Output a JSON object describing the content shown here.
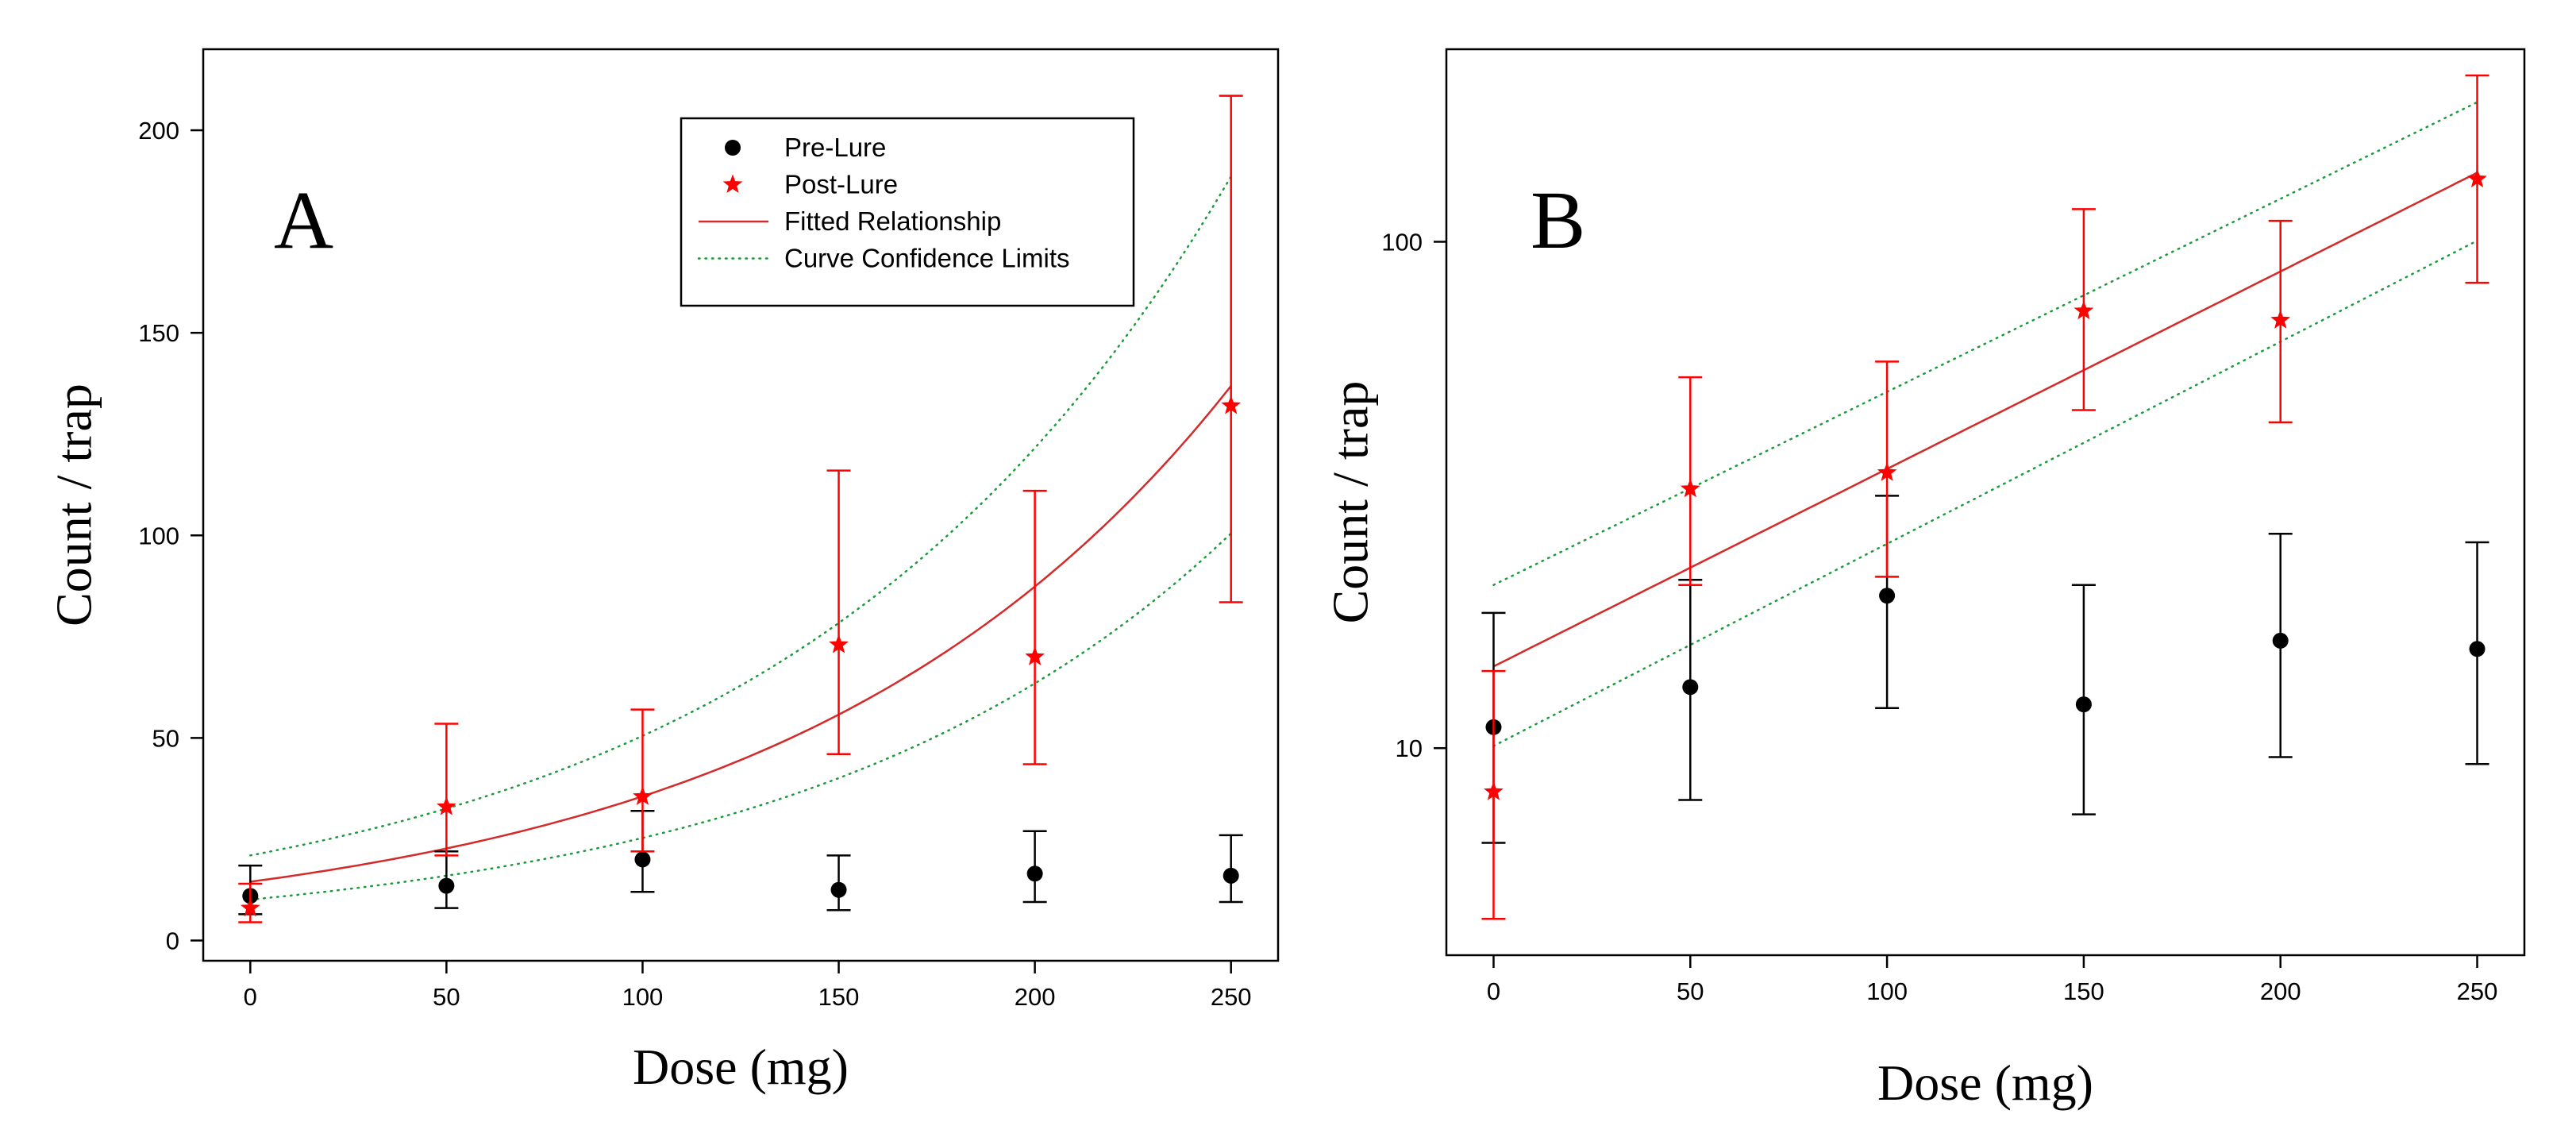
{
  "chart_data": [
    {
      "type": "scatter",
      "panel_letter": "A",
      "scale": "linear",
      "xlabel": "Dose (mg)",
      "ylabel": "Count / trap",
      "xlim": [
        -12,
        262
      ],
      "ylim": [
        -5,
        220
      ],
      "xticks": [
        0,
        50,
        100,
        150,
        200,
        250
      ],
      "yticks": [
        0,
        50,
        100,
        150,
        200
      ],
      "grid": false,
      "legend": {
        "placement": "top-center",
        "entries": [
          {
            "label": "Pre-Lure",
            "marker": "circle",
            "color": "#000000"
          },
          {
            "label": "Post-Lure",
            "marker": "star",
            "color": "#ff0000"
          },
          {
            "label": "Fitted Relationship",
            "line": "solid",
            "color": "#d42a2a"
          },
          {
            "label": "Curve Confidence Limits",
            "line": "dotted",
            "color": "#1a9a3a"
          }
        ]
      },
      "series": [
        {
          "name": "Pre-Lure",
          "x": [
            0,
            50,
            100,
            150,
            200,
            250
          ],
          "y": [
            11,
            13.5,
            20,
            12.5,
            16.5,
            16
          ],
          "yerr_low": [
            6.5,
            8,
            12,
            7.5,
            9.5,
            9.5
          ],
          "yerr_high": [
            18.5,
            22,
            32,
            21,
            27,
            26
          ],
          "color": "#000000",
          "marker": "circle"
        },
        {
          "name": "Post-Lure",
          "x": [
            0,
            50,
            100,
            150,
            200,
            250
          ],
          "y": [
            8,
            33,
            35.5,
            73,
            70,
            132
          ],
          "yerr_low": [
            4.5,
            21,
            22,
            46,
            43.5,
            83.5
          ],
          "yerr_high": [
            14,
            53.5,
            57,
            116,
            111,
            208.5
          ],
          "color": "#ff0000",
          "marker": "star"
        }
      ],
      "fit": {
        "name": "Fitted Relationship",
        "model": "exponential",
        "a": 14.5,
        "b": 0.00898,
        "x_range": [
          0,
          250
        ],
        "color": "#d42a2a"
      },
      "confidence_limits": {
        "name": "Curve Confidence Limits",
        "lower": {
          "a": 10.1,
          "b": 0.00919
        },
        "upper": {
          "a": 21.0,
          "b": 0.00878
        },
        "color": "#1a9a3a"
      }
    },
    {
      "type": "scatter",
      "panel_letter": "B",
      "scale": "log",
      "xlabel": "Dose (mg)",
      "ylabel": "Count / trap",
      "xlim": [
        -12,
        262
      ],
      "ylim": [
        3.9,
        240
      ],
      "xticks": [
        0,
        50,
        100,
        150,
        200,
        250
      ],
      "yticks": [
        10,
        100
      ],
      "grid": false,
      "series": [
        {
          "name": "Pre-Lure",
          "x": [
            0,
            50,
            100,
            150,
            200,
            250
          ],
          "y": [
            11,
            13.2,
            20,
            12.2,
            16.3,
            15.7
          ],
          "yerr_low": [
            6.5,
            7.9,
            12,
            7.4,
            9.6,
            9.3
          ],
          "yerr_high": [
            18.5,
            21.5,
            31.5,
            21,
            26.5,
            25.5
          ],
          "color": "#000000",
          "marker": "circle"
        },
        {
          "name": "Post-Lure",
          "x": [
            0,
            50,
            100,
            150,
            200,
            250
          ],
          "y": [
            8.2,
            32.5,
            35,
            73,
            70,
            133
          ],
          "yerr_low": [
            4.6,
            21,
            21.8,
            46.5,
            44,
            83
          ],
          "yerr_high": [
            14.2,
            54,
            58,
            116,
            110,
            213
          ],
          "color": "#ff0000",
          "marker": "star"
        }
      ],
      "fit": {
        "name": "Fitted Relationship",
        "model": "exponential",
        "a": 14.5,
        "b": 0.00898,
        "x_range": [
          0,
          250
        ],
        "color": "#d42a2a"
      },
      "confidence_limits": {
        "name": "Curve Confidence Limits",
        "lower": {
          "a": 10.1,
          "b": 0.00919
        },
        "upper": {
          "a": 21.0,
          "b": 0.00878
        },
        "color": "#1a9a3a"
      }
    }
  ]
}
